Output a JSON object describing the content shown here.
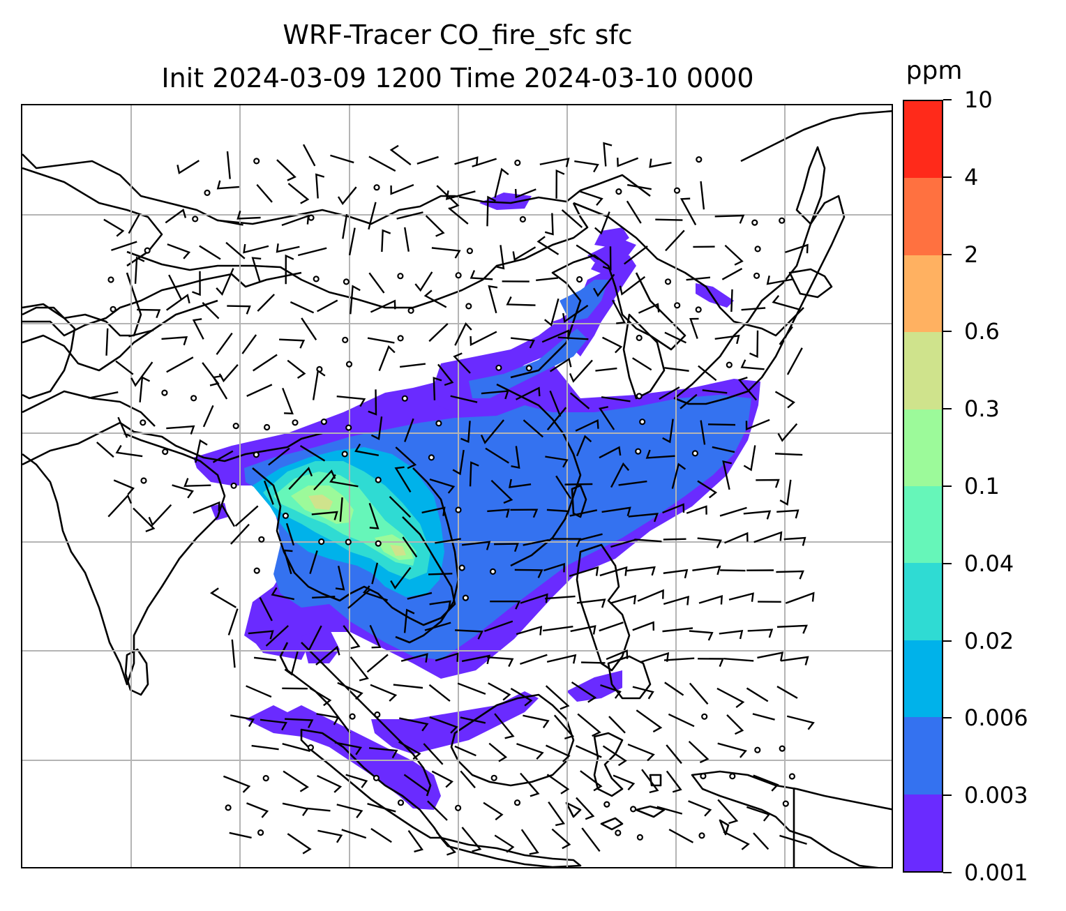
{
  "title": {
    "line1": "WRF-Tracer CO_fire_sfc sfc",
    "line2": "Init 2024-03-09 1200 Time 2024-03-10 0000"
  },
  "colorbar": {
    "units": "ppm",
    "levels": [
      "0.001",
      "0.003",
      "0.006",
      "0.02",
      "0.04",
      "0.1",
      "0.3",
      "0.6",
      "2",
      "4",
      "10"
    ],
    "colors": [
      "#6a2bff",
      "#3472f0",
      "#00b2ea",
      "#2fdbd3",
      "#66f6b9",
      "#9cfa9a",
      "#cfe38c",
      "#ffb161",
      "#ff7140",
      "#ff2a1a"
    ]
  },
  "map": {
    "gridline_color": "#b4b4b4",
    "coastline_color": "#000000",
    "wind_barbs": "black",
    "calm_marker": "open-circle"
  }
}
